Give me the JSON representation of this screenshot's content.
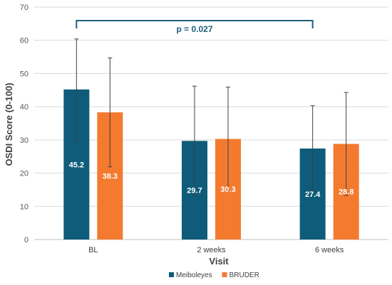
{
  "chart_data": {
    "type": "bar",
    "categories": [
      "BL",
      "2 weeks",
      "6 weeks"
    ],
    "series": [
      {
        "name": "Meiboleyes",
        "values": [
          45.2,
          29.7,
          27.4
        ],
        "error": [
          15.2,
          16.5,
          12.9
        ],
        "color": "#0e5c7a"
      },
      {
        "name": "BRUDER",
        "values": [
          38.3,
          30.3,
          28.8
        ],
        "error": [
          16.4,
          15.6,
          15.5
        ],
        "color": "#f47a2f"
      }
    ],
    "xlabel": "Visit",
    "ylabel": "OSDI Score (0-100)",
    "ylim": [
      0,
      70
    ],
    "yticks": [
      0,
      10,
      20,
      30,
      40,
      50,
      60,
      70
    ],
    "grid": true,
    "legend": "bottom",
    "annotation": {
      "text": "p = 0.027",
      "from": "BL",
      "to": "6 weeks",
      "series": "Meiboleyes",
      "color": "#1f5f7a"
    }
  }
}
